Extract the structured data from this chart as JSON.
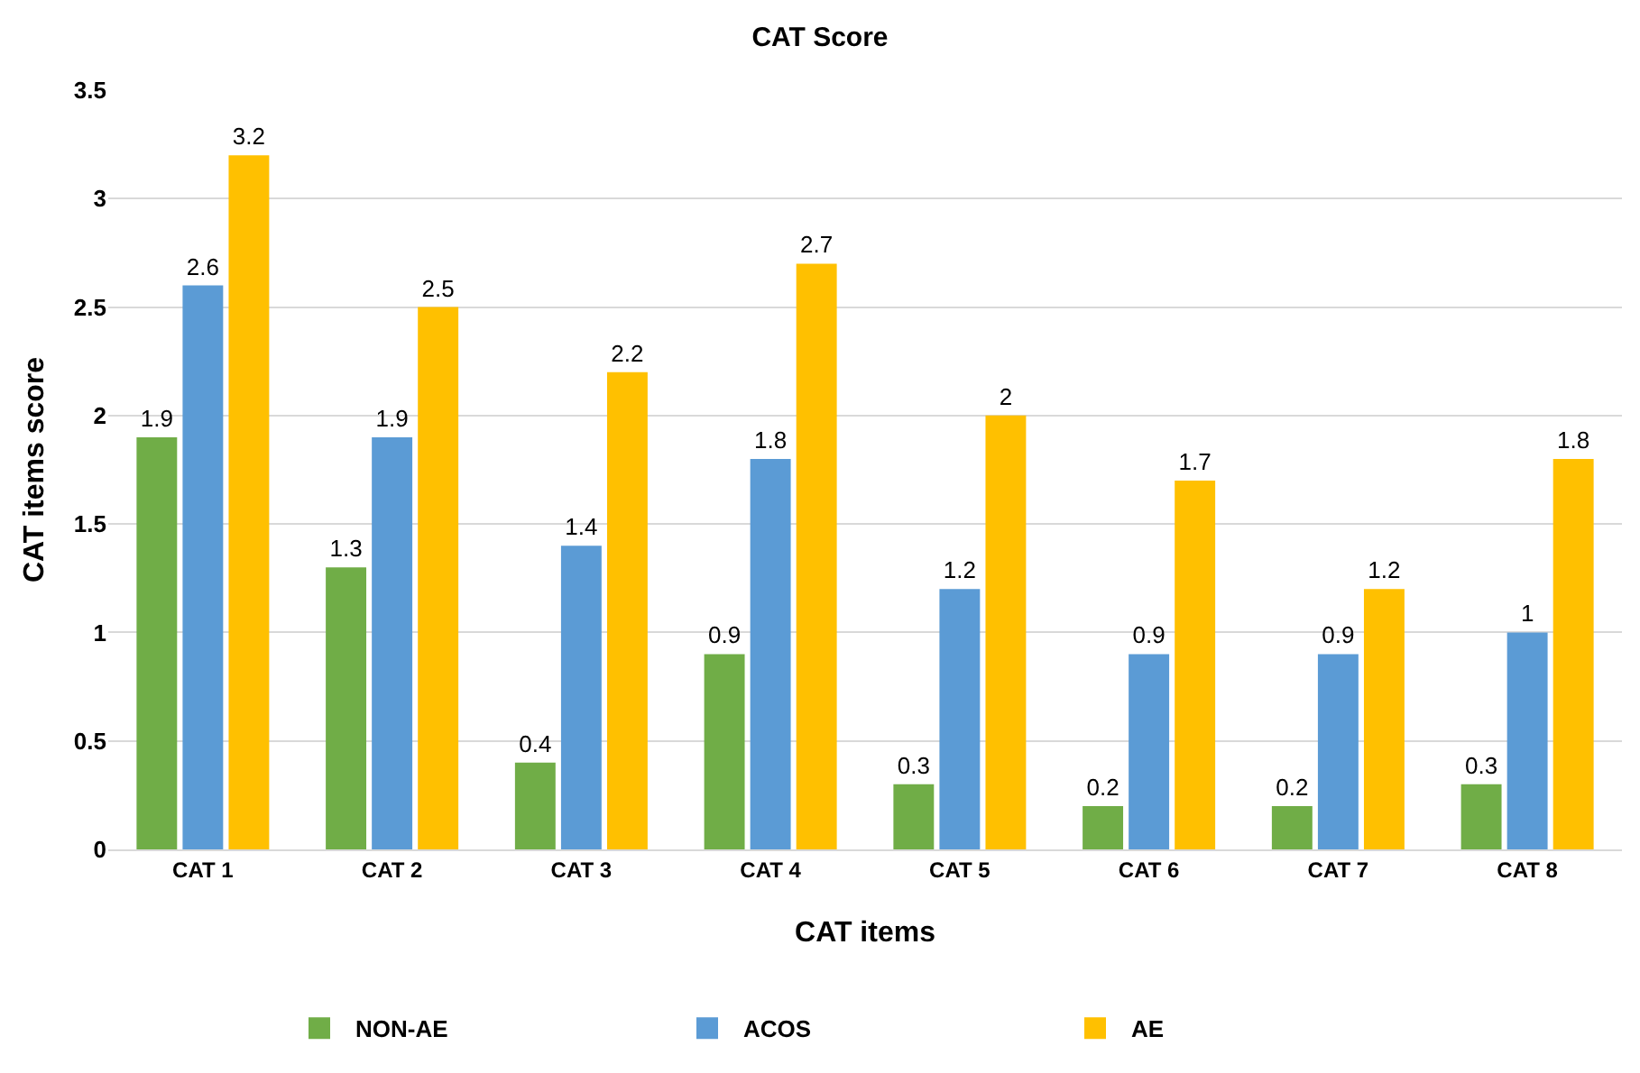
{
  "chart_data": {
    "type": "bar",
    "title": "CAT Score",
    "xlabel": "CAT items",
    "ylabel": "CAT items score",
    "categories": [
      "CAT 1",
      "CAT 2",
      "CAT 3",
      "CAT 4",
      "CAT 5",
      "CAT 6",
      "CAT 7",
      "CAT 8"
    ],
    "series": [
      {
        "name": "NON-AE",
        "color": "#70ad47",
        "values": [
          1.9,
          1.3,
          0.4,
          0.9,
          0.3,
          0.2,
          0.2,
          0.3
        ]
      },
      {
        "name": "ACOS",
        "color": "#5b9bd5",
        "values": [
          2.6,
          1.9,
          1.4,
          1.8,
          1.2,
          0.9,
          0.9,
          1
        ]
      },
      {
        "name": "AE",
        "color": "#ffc000",
        "values": [
          3.2,
          2.5,
          2.2,
          2.7,
          2,
          1.7,
          1.2,
          1.8
        ]
      }
    ],
    "ylim": [
      0,
      3.5
    ],
    "yticks": [
      0,
      0.5,
      1,
      1.5,
      2,
      2.5,
      3,
      3.5
    ],
    "grid": "y",
    "legend": "bottom",
    "data_labels": true
  }
}
